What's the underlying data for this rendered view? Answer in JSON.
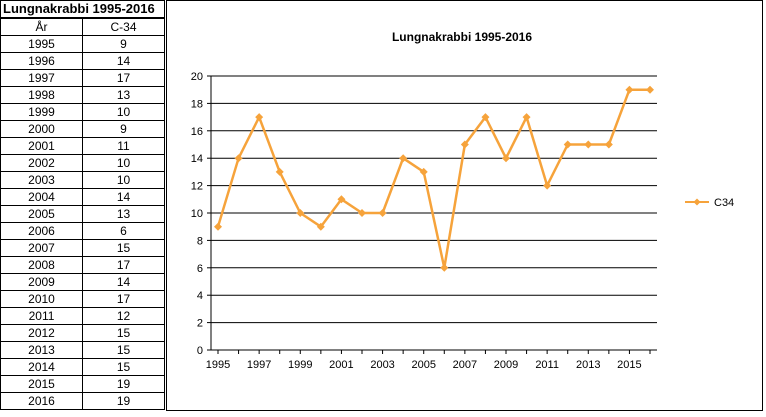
{
  "table": {
    "title": "Lungnakrabbi 1995-2016",
    "col_year": "År",
    "col_value": "C-34",
    "rows": [
      {
        "year": "1995",
        "value": "9"
      },
      {
        "year": "1996",
        "value": "14"
      },
      {
        "year": "1997",
        "value": "17"
      },
      {
        "year": "1998",
        "value": "13"
      },
      {
        "year": "1999",
        "value": "10"
      },
      {
        "year": "2000",
        "value": "9"
      },
      {
        "year": "2001",
        "value": "11"
      },
      {
        "year": "2002",
        "value": "10"
      },
      {
        "year": "2003",
        "value": "10"
      },
      {
        "year": "2004",
        "value": "14"
      },
      {
        "year": "2005",
        "value": "13"
      },
      {
        "year": "2006",
        "value": "6"
      },
      {
        "year": "2007",
        "value": "15"
      },
      {
        "year": "2008",
        "value": "17"
      },
      {
        "year": "2009",
        "value": "14"
      },
      {
        "year": "2010",
        "value": "17"
      },
      {
        "year": "2011",
        "value": "12"
      },
      {
        "year": "2012",
        "value": "15"
      },
      {
        "year": "2013",
        "value": "15"
      },
      {
        "year": "2014",
        "value": "15"
      },
      {
        "year": "2015",
        "value": "19"
      },
      {
        "year": "2016",
        "value": "19"
      }
    ]
  },
  "chart_data": {
    "type": "line",
    "title": "Lungnakrabbi 1995-2016",
    "xlabel": "",
    "ylabel": "",
    "x": [
      1995,
      1996,
      1997,
      1998,
      1999,
      2000,
      2001,
      2002,
      2003,
      2004,
      2005,
      2006,
      2007,
      2008,
      2009,
      2010,
      2011,
      2012,
      2013,
      2014,
      2015,
      2016
    ],
    "x_tick_labels": [
      "1995",
      "1997",
      "1999",
      "2001",
      "2003",
      "2005",
      "2007",
      "2009",
      "2011",
      "2013",
      "2015"
    ],
    "y_tick_labels": [
      "0",
      "2",
      "4",
      "6",
      "8",
      "10",
      "12",
      "14",
      "16",
      "18",
      "20"
    ],
    "ylim": [
      0,
      20
    ],
    "y_step": 2,
    "grid": true,
    "legend_position": "right",
    "series": [
      {
        "name": "C34",
        "color": "#f6a33b",
        "marker": "diamond",
        "values": [
          9,
          14,
          17,
          13,
          10,
          9,
          11,
          10,
          10,
          14,
          13,
          6,
          15,
          17,
          14,
          17,
          12,
          15,
          15,
          15,
          19,
          19
        ]
      }
    ]
  }
}
